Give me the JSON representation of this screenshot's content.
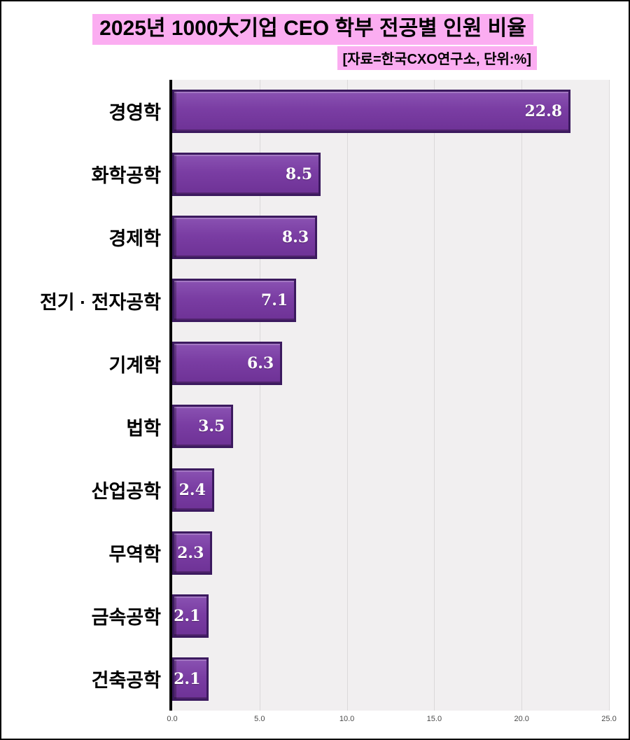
{
  "header": {
    "title": "2025년 1000大기업 CEO 학부 전공별 인원 비율",
    "subtitle": "[자료=한국CXO연구소,  단위:%]"
  },
  "chart_data": {
    "type": "bar",
    "orientation": "horizontal",
    "title": "2025년 1000大기업 CEO 학부 전공별 인원 비율",
    "subtitle": "[자료=한국CXO연구소, 단위:%]",
    "categories": [
      "경영학",
      "화학공학",
      "경제학",
      "전기 · 전자공학",
      "기계학",
      "법학",
      "산업공학",
      "무역학",
      "금속공학",
      "건축공학"
    ],
    "values": [
      22.8,
      8.5,
      8.3,
      7.1,
      6.3,
      3.5,
      2.4,
      2.3,
      2.1,
      2.1
    ],
    "xlim": [
      0,
      25
    ],
    "x_ticks": [
      "0.0",
      "5.0",
      "10.0",
      "15.0",
      "20.0",
      "25.0"
    ],
    "grid": true,
    "legend": "none",
    "colors": {
      "bar_fill": "#7a3da3",
      "bar_border": "#3c1a5f",
      "value_label": "#ffffff",
      "title_highlight": "#fbadf1",
      "plot_background": "#f1eff0",
      "axis_line": "#000000"
    }
  }
}
